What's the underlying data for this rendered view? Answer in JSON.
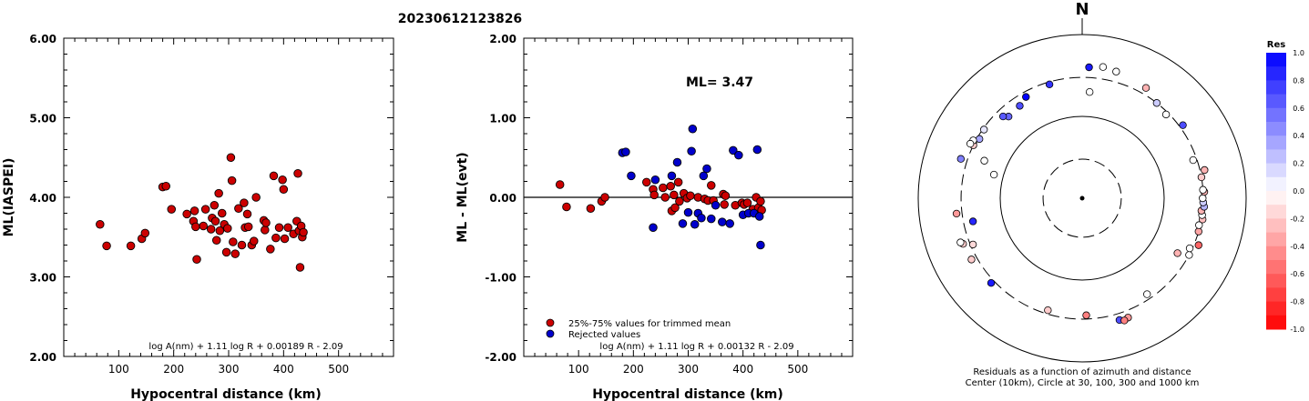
{
  "title": "20230612123826",
  "chart_data": [
    {
      "type": "scatter",
      "ylabel": "ML(IASPEI)",
      "xlabel": "Hypocentral distance (km)",
      "xlim": [
        0,
        600
      ],
      "ylim": [
        2.0,
        6.0
      ],
      "x_ticks": [
        "100",
        "200",
        "300",
        "400",
        "500"
      ],
      "y_ticks": [
        "2.00",
        "3.00",
        "4.00",
        "5.00",
        "6.00"
      ],
      "formula": "log A(nm) + 1.11 log R + 0.00189 R - 2.09",
      "marker_color": "#cc0000",
      "points": [
        [
          66,
          3.66
        ],
        [
          78,
          3.39
        ],
        [
          122,
          3.39
        ],
        [
          142,
          3.48
        ],
        [
          148,
          3.55
        ],
        [
          180,
          4.13
        ],
        [
          186,
          4.14
        ],
        [
          196,
          3.85
        ],
        [
          224,
          3.79
        ],
        [
          236,
          3.7
        ],
        [
          238,
          3.83
        ],
        [
          240,
          3.63
        ],
        [
          242,
          3.22
        ],
        [
          254,
          3.64
        ],
        [
          258,
          3.85
        ],
        [
          268,
          3.6
        ],
        [
          270,
          3.74
        ],
        [
          274,
          3.9
        ],
        [
          276,
          3.7
        ],
        [
          278,
          3.46
        ],
        [
          282,
          4.05
        ],
        [
          284,
          3.58
        ],
        [
          288,
          3.8
        ],
        [
          292,
          3.66
        ],
        [
          296,
          3.31
        ],
        [
          298,
          3.61
        ],
        [
          304,
          4.5
        ],
        [
          306,
          4.21
        ],
        [
          308,
          3.44
        ],
        [
          312,
          3.29
        ],
        [
          318,
          3.86
        ],
        [
          324,
          3.4
        ],
        [
          328,
          3.93
        ],
        [
          330,
          3.62
        ],
        [
          334,
          3.79
        ],
        [
          336,
          3.63
        ],
        [
          342,
          3.4
        ],
        [
          346,
          3.45
        ],
        [
          350,
          4.0
        ],
        [
          364,
          3.71
        ],
        [
          366,
          3.59
        ],
        [
          368,
          3.68
        ],
        [
          376,
          3.35
        ],
        [
          382,
          4.27
        ],
        [
          386,
          3.49
        ],
        [
          392,
          3.62
        ],
        [
          398,
          4.22
        ],
        [
          400,
          4.1
        ],
        [
          402,
          3.48
        ],
        [
          408,
          3.62
        ],
        [
          418,
          3.54
        ],
        [
          424,
          3.7
        ],
        [
          426,
          4.3
        ],
        [
          428,
          3.58
        ],
        [
          430,
          3.12
        ],
        [
          432,
          3.64
        ],
        [
          434,
          3.5
        ],
        [
          436,
          3.56
        ]
      ]
    },
    {
      "type": "scatter",
      "ylabel": "ML - ML(evt)",
      "xlabel": "Hypocentral distance (km)",
      "xlim": [
        0,
        600
      ],
      "ylim": [
        -2.0,
        2.0
      ],
      "x_ticks": [
        "100",
        "200",
        "300",
        "400",
        "500"
      ],
      "y_ticks": [
        "-2.00",
        "-1.00",
        "0.00",
        "1.00",
        "2.00"
      ],
      "annotation": "ML= 3.47",
      "formula": "log A(nm) + 1.11 log R + 0.00132 R - 2.09",
      "series": [
        {
          "name": "25%-75% values for trimmed mean",
          "color": "#cc0000",
          "points": [
            [
              66,
              0.16
            ],
            [
              78,
              -0.12
            ],
            [
              122,
              -0.14
            ],
            [
              142,
              -0.05
            ],
            [
              148,
              0.0
            ],
            [
              224,
              0.19
            ],
            [
              236,
              0.1
            ],
            [
              238,
              0.03
            ],
            [
              254,
              0.12
            ],
            [
              258,
              0.0
            ],
            [
              268,
              0.14
            ],
            [
              270,
              -0.17
            ],
            [
              274,
              0.03
            ],
            [
              276,
              -0.13
            ],
            [
              282,
              0.19
            ],
            [
              284,
              -0.05
            ],
            [
              292,
              0.05
            ],
            [
              298,
              -0.01
            ],
            [
              304,
              0.02
            ],
            [
              318,
              0.0
            ],
            [
              330,
              -0.02
            ],
            [
              336,
              -0.04
            ],
            [
              342,
              0.15
            ],
            [
              346,
              -0.04
            ],
            [
              364,
              0.04
            ],
            [
              366,
              -0.09
            ],
            [
              368,
              0.02
            ],
            [
              386,
              -0.1
            ],
            [
              398,
              -0.07
            ],
            [
              402,
              -0.09
            ],
            [
              408,
              -0.07
            ],
            [
              418,
              -0.15
            ],
            [
              424,
              0.0
            ],
            [
              428,
              -0.13
            ],
            [
              432,
              -0.05
            ],
            [
              434,
              -0.16
            ]
          ]
        },
        {
          "name": "Rejected values",
          "color": "#0000cc",
          "points": [
            [
              180,
              0.56
            ],
            [
              186,
              0.57
            ],
            [
              196,
              0.27
            ],
            [
              236,
              -0.38
            ],
            [
              240,
              0.22
            ],
            [
              270,
              0.27
            ],
            [
              280,
              0.44
            ],
            [
              290,
              -0.33
            ],
            [
              300,
              -0.19
            ],
            [
              306,
              0.58
            ],
            [
              308,
              0.86
            ],
            [
              312,
              -0.34
            ],
            [
              318,
              -0.2
            ],
            [
              324,
              -0.26
            ],
            [
              328,
              0.27
            ],
            [
              334,
              0.36
            ],
            [
              342,
              -0.27
            ],
            [
              350,
              -0.1
            ],
            [
              362,
              -0.31
            ],
            [
              376,
              -0.33
            ],
            [
              382,
              0.59
            ],
            [
              392,
              0.53
            ],
            [
              400,
              -0.22
            ],
            [
              410,
              -0.2
            ],
            [
              420,
              -0.2
            ],
            [
              426,
              0.6
            ],
            [
              430,
              -0.24
            ],
            [
              432,
              -0.6
            ]
          ]
        }
      ]
    },
    {
      "type": "polar-scatter",
      "compass_label": "N",
      "caption_line1": "Residuals as a function of azimuth and distance",
      "caption_line2": "Center (10km), Circle at 30, 100, 300 and 1000 km",
      "rings_km": [
        30,
        100,
        300,
        1000
      ],
      "center_km": 10,
      "ring_styles": [
        "dashed",
        "solid",
        "dashed",
        "solid"
      ],
      "points": [
        {
          "az": 331,
          "dist": 260,
          "res": 1.0
        },
        {
          "az": 326,
          "dist": 230,
          "res": 0.7
        },
        {
          "az": 318,
          "dist": 220,
          "res": 0.6
        },
        {
          "az": 316,
          "dist": 245,
          "res": 0.65
        },
        {
          "az": 305,
          "dist": 290,
          "res": 0.1
        },
        {
          "az": 300,
          "dist": 280,
          "res": 0.35
        },
        {
          "az": 297,
          "dist": 310,
          "res": -0.1
        },
        {
          "az": 296,
          "dist": 300,
          "res": -0.2
        },
        {
          "az": 298,
          "dist": 320,
          "res": 0.0
        },
        {
          "az": 296,
          "dist": 330,
          "res": 0.0
        },
        {
          "az": 285,
          "dist": 130,
          "res": 0.0
        },
        {
          "az": 291,
          "dist": 190,
          "res": 0.0
        },
        {
          "az": 288,
          "dist": 360,
          "res": 0.5
        },
        {
          "az": 263,
          "dist": 350,
          "res": -0.4
        },
        {
          "az": 247,
          "dist": 280,
          "res": -0.15
        },
        {
          "az": 258,
          "dist": 230,
          "res": 0.85
        },
        {
          "az": 249,
          "dist": 360,
          "res": -0.2
        },
        {
          "az": 250,
          "dist": 380,
          "res": 0.0
        },
        {
          "az": 241,
          "dist": 350,
          "res": -0.2
        },
        {
          "az": 227,
          "dist": 330,
          "res": 0.9
        },
        {
          "az": 197,
          "dist": 270,
          "res": -0.2
        },
        {
          "az": 178,
          "dist": 270,
          "res": -0.5
        },
        {
          "az": 163,
          "dist": 360,
          "res": 0.7
        },
        {
          "az": 159,
          "dist": 365,
          "res": -0.4
        },
        {
          "az": 161,
          "dist": 380,
          "res": -0.5
        },
        {
          "az": 146,
          "dist": 260,
          "res": 0.0
        },
        {
          "az": 120,
          "dist": 220,
          "res": -0.3
        },
        {
          "az": 118,
          "dist": 300,
          "res": 0.0
        },
        {
          "az": 115,
          "dist": 280,
          "res": 0.0
        },
        {
          "az": 112,
          "dist": 340,
          "res": -0.6
        },
        {
          "az": 106,
          "dist": 300,
          "res": -0.35
        },
        {
          "az": 103,
          "dist": 290,
          "res": 0.0
        },
        {
          "az": 100,
          "dist": 310,
          "res": -0.25
        },
        {
          "az": 98,
          "dist": 300,
          "res": 0.0
        },
        {
          "az": 96,
          "dist": 290,
          "res": -0.3
        },
        {
          "az": 94,
          "dist": 310,
          "res": 0.3
        },
        {
          "az": 92,
          "dist": 300,
          "res": 0.2
        },
        {
          "az": 90,
          "dist": 295,
          "res": 0.0
        },
        {
          "az": 87,
          "dist": 310,
          "res": -0.3
        },
        {
          "az": 86,
          "dist": 300,
          "res": 0.0
        },
        {
          "az": 80,
          "dist": 300,
          "res": -0.2
        },
        {
          "az": 77,
          "dist": 340,
          "res": -0.3
        },
        {
          "az": 71,
          "dist": 270,
          "res": 0.0
        },
        {
          "az": 54,
          "dist": 330,
          "res": 0.7
        },
        {
          "az": 45,
          "dist": 280,
          "res": 0.0
        },
        {
          "az": 38,
          "dist": 300,
          "res": 0.2
        },
        {
          "az": 30,
          "dist": 360,
          "res": -0.3
        },
        {
          "az": 9,
          "dist": 420,
          "res": 0.0
        },
        {
          "az": 15,
          "dist": 400,
          "res": 0.0
        },
        {
          "az": 3,
          "dist": 400,
          "res": 0.9
        },
        {
          "az": 344,
          "dist": 280,
          "res": 0.8
        },
        {
          "az": 4,
          "dist": 200,
          "res": 0.0
        }
      ],
      "colorbar": {
        "title": "Res",
        "ticks": [
          "1.0",
          "0.8",
          "0.6",
          "0.4",
          "0.2",
          "0.0",
          "-0.2",
          "-0.4",
          "-0.6",
          "-0.8",
          "-1.0"
        ],
        "max_color": "#0000ff",
        "min_color": "#ff0000"
      }
    }
  ]
}
